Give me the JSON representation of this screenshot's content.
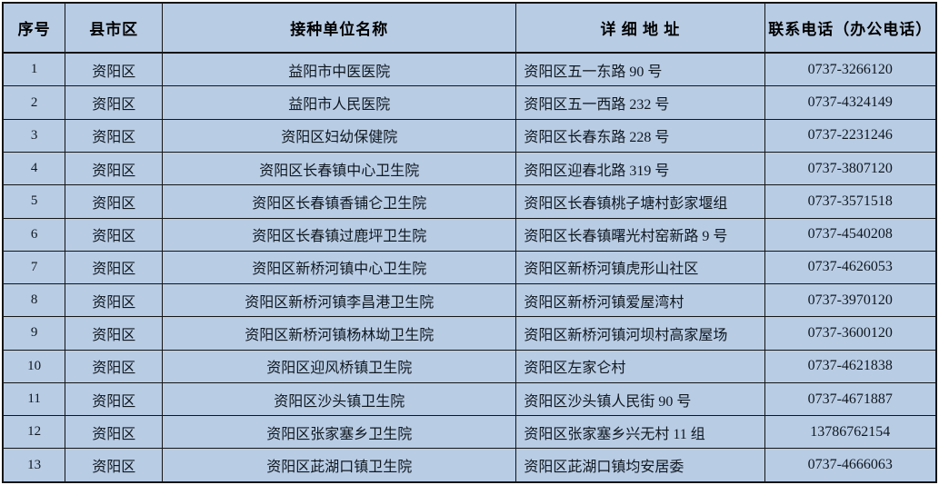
{
  "colors": {
    "background": "#b8cce4",
    "grid": "#151515",
    "text": "#101820",
    "header_text": "#000000"
  },
  "table": {
    "columns": [
      {
        "key": "index",
        "label": "序号"
      },
      {
        "key": "district",
        "label": "县市区"
      },
      {
        "key": "name",
        "label": "接种单位名称"
      },
      {
        "key": "address",
        "label": "详 细 地  址"
      },
      {
        "key": "phone",
        "label": "联系电话（办公电话）"
      }
    ],
    "rows": [
      {
        "index": "1",
        "district": "资阳区",
        "name": "益阳市中医医院",
        "address": "资阳区五一东路 90 号",
        "phone": "0737-3266120"
      },
      {
        "index": "2",
        "district": "资阳区",
        "name": "益阳市人民医院",
        "address": "资阳区五一西路 232 号",
        "phone": "0737-4324149"
      },
      {
        "index": "3",
        "district": "资阳区",
        "name": "资阳区妇幼保健院",
        "address": "资阳区长春东路 228 号",
        "phone": "0737-2231246"
      },
      {
        "index": "4",
        "district": "资阳区",
        "name": "资阳区长春镇中心卫生院",
        "address": "资阳区迎春北路 319 号",
        "phone": "0737-3807120"
      },
      {
        "index": "5",
        "district": "资阳区",
        "name": "资阳区长春镇香铺仑卫生院",
        "address": "资阳区长春镇桃子塘村彭家堰组",
        "phone": "0737-3571518"
      },
      {
        "index": "6",
        "district": "资阳区",
        "name": "资阳区长春镇过鹿坪卫生院",
        "address": "资阳区长春镇曙光村窑新路 9 号",
        "phone": "0737-4540208"
      },
      {
        "index": "7",
        "district": "资阳区",
        "name": "资阳区新桥河镇中心卫生院",
        "address": "资阳区新桥河镇虎形山社区",
        "phone": "0737-4626053"
      },
      {
        "index": "8",
        "district": "资阳区",
        "name": "资阳区新桥河镇李昌港卫生院",
        "address": "资阳区新桥河镇爱屋湾村",
        "phone": "0737-3970120"
      },
      {
        "index": "9",
        "district": "资阳区",
        "name": "资阳区新桥河镇杨林坳卫生院",
        "address": "资阳区新桥河镇河坝村高家屋场",
        "phone": "0737-3600120"
      },
      {
        "index": "10",
        "district": "资阳区",
        "name": "资阳区迎风桥镇卫生院",
        "address": "资阳区左家仑村",
        "phone": "0737-4621838"
      },
      {
        "index": "11",
        "district": "资阳区",
        "name": "资阳区沙头镇卫生院",
        "address": "资阳区沙头镇人民街 90 号",
        "phone": "0737-4671887"
      },
      {
        "index": "12",
        "district": "资阳区",
        "name": "资阳区张家塞乡卫生院",
        "address": "资阳区张家塞乡兴无村 11 组",
        "phone": "13786762154"
      },
      {
        "index": "13",
        "district": "资阳区",
        "name": "资阳区茈湖口镇卫生院",
        "address": "资阳区茈湖口镇均安居委",
        "phone": "0737-4666063"
      }
    ]
  }
}
